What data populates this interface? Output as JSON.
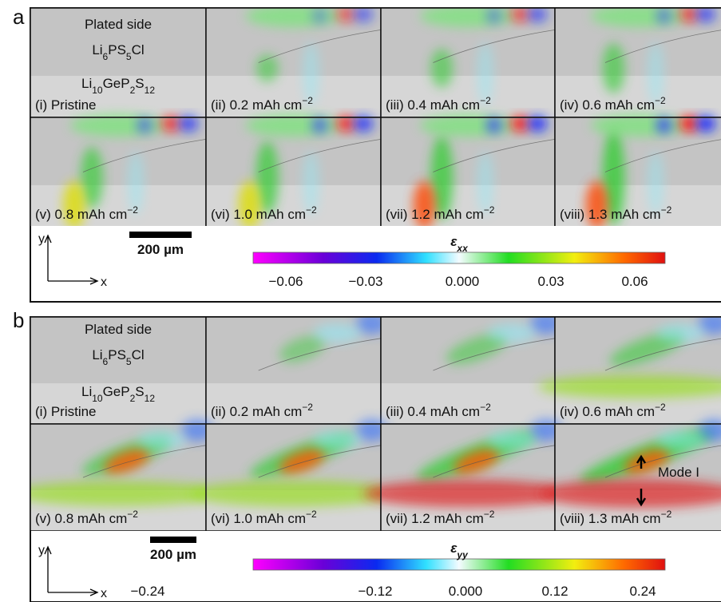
{
  "panels": [
    {
      "label": "a",
      "material": {
        "top": "Plated side",
        "solid": "Li6PS5Cl",
        "electrolyte": "Li10GeP2S12"
      },
      "images": [
        "(i) Pristine",
        "(ii) 0.2 mAh cm−2",
        "(iii) 0.4 mAh cm−2",
        "(iv) 0.6 mAh cm−2",
        "(v) 0.8 mAh cm−2",
        "(vi) 1.0 mAh cm−2",
        "(vii) 1.2 mAh cm−2",
        "(viii) 1.3 mAh cm−2"
      ],
      "scale_bar": "200 µm",
      "axes": {
        "y": "y",
        "x": "x"
      },
      "colorbar": {
        "title": "εxx",
        "ticks": [
          "−0.06",
          "−0.03",
          "0.000",
          "0.03",
          "0.06"
        ]
      }
    },
    {
      "label": "b",
      "material": {
        "top": "Plated side",
        "solid": "Li6PS5Cl",
        "electrolyte": "Li10GeP2S12"
      },
      "images": [
        "(i) Pristine",
        "(ii) 0.2 mAh cm−2",
        "(iii) 0.4 mAh cm−2",
        "(iv) 0.6 mAh cm−2",
        "(v) 0.8 mAh cm−2",
        "(vi) 1.0 mAh cm−2",
        "(vii) 1.2 mAh cm−2",
        "(viii) 1.3 mAh cm−2"
      ],
      "scale_bar": "200 µm",
      "axes": {
        "y": "y",
        "x": "x"
      },
      "annotation": "Mode I",
      "colorbar": {
        "title": "εyy",
        "ticks": [
          "−0.24",
          "−0.12",
          "0.000",
          "0.12",
          "0.24"
        ]
      }
    }
  ]
}
